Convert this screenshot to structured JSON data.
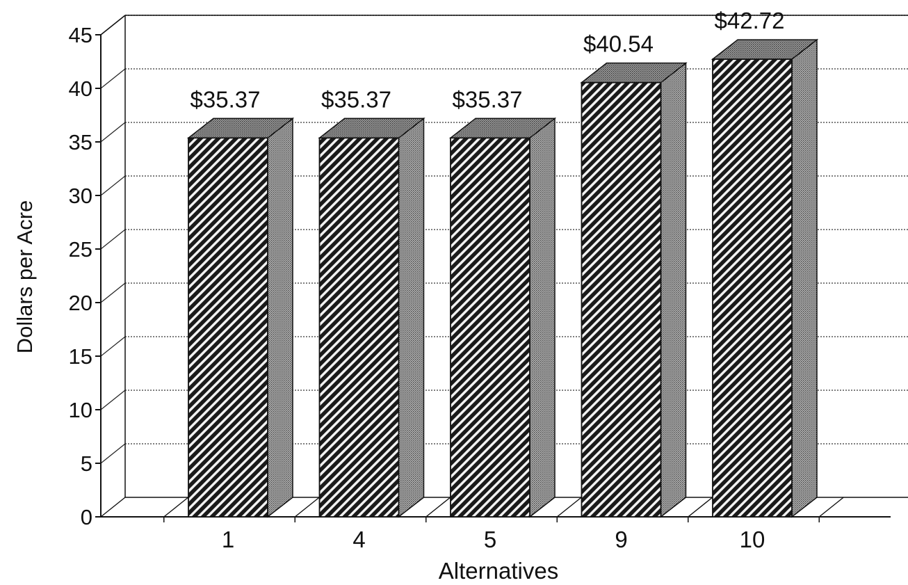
{
  "chart_data": {
    "type": "bar",
    "categories": [
      "1",
      "4",
      "5",
      "9",
      "10"
    ],
    "values": [
      35.37,
      35.37,
      35.37,
      40.54,
      42.72
    ],
    "data_labels": [
      "$35.37",
      "$35.37",
      "$35.37",
      "$40.54",
      "$42.72"
    ],
    "title": "",
    "xlabel": "Alternatives",
    "ylabel": "Dollars per Acre",
    "ylim": [
      0,
      45
    ],
    "yticks": [
      0,
      5,
      10,
      15,
      20,
      25,
      30,
      35,
      40,
      45
    ],
    "grid": true,
    "style": "3d-hatched",
    "colors": {
      "bar_front": "#3a3a3a",
      "bar_side": "#9a9a9a",
      "bar_top": "#8c8c8c",
      "gridline": "#555555"
    }
  }
}
